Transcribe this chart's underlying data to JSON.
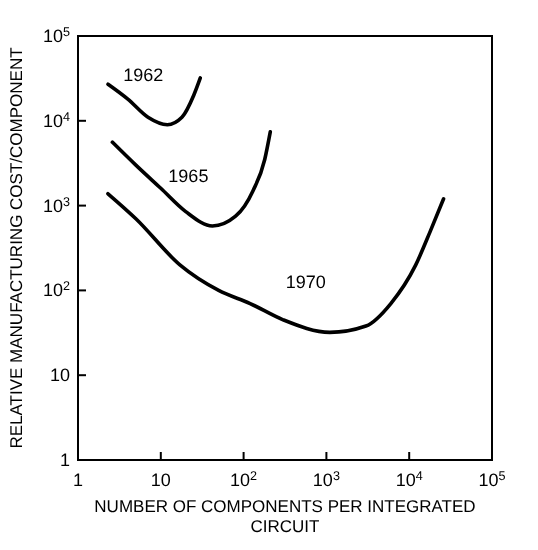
{
  "chart_data": {
    "type": "line",
    "xlabel": "NUMBER OF COMPONENTS PER INTEGRATED CIRCUIT",
    "ylabel": "RELATIVE MANUFACTURING COST/COMPONENT",
    "log": "xy",
    "xlim": [
      1,
      100000
    ],
    "ylim": [
      1,
      100000
    ],
    "xticks": [
      1,
      10,
      {
        "value": 100,
        "label": "10$^{2}$"
      },
      {
        "value": 1000,
        "label": "10$^{3}$"
      },
      {
        "value": 10000,
        "label": "10$^{4}$"
      },
      {
        "value": 100000,
        "label": "10$^{5}$"
      }
    ],
    "yticks": [
      1,
      10,
      {
        "value": 100,
        "label": "10$^{2}$"
      },
      {
        "value": 1000,
        "label": "10$^{3}$"
      },
      {
        "value": 10000,
        "label": "10$^{4}$"
      },
      {
        "value": 100000,
        "label": "10$^{5}$"
      }
    ],
    "grid": false,
    "marker": "none",
    "line_style": "solid",
    "series": [
      {
        "name": "1962",
        "color": "#000000",
        "x": [
          2.3,
          4,
          7,
          12,
          18,
          25,
          30
        ],
        "values": [
          27000,
          18000,
          11000,
          9000,
          11000,
          20000,
          32000
        ]
      },
      {
        "name": "1965",
        "color": "#000000",
        "x": [
          2.6,
          5,
          10,
          20,
          42,
          80,
          130,
          180,
          210
        ],
        "values": [
          5600,
          3000,
          1600,
          850,
          575,
          750,
          1500,
          3500,
          7400
        ]
      },
      {
        "name": "1970",
        "color": "#000000",
        "x": [
          2.3,
          5,
          17,
          50,
          120,
          300,
          1100,
          3000,
          6000,
          12000,
          18000,
          26000
        ],
        "values": [
          1380,
          700,
          200,
          100,
          70,
          45,
          32,
          38,
          70,
          200,
          500,
          1200
        ]
      }
    ]
  }
}
